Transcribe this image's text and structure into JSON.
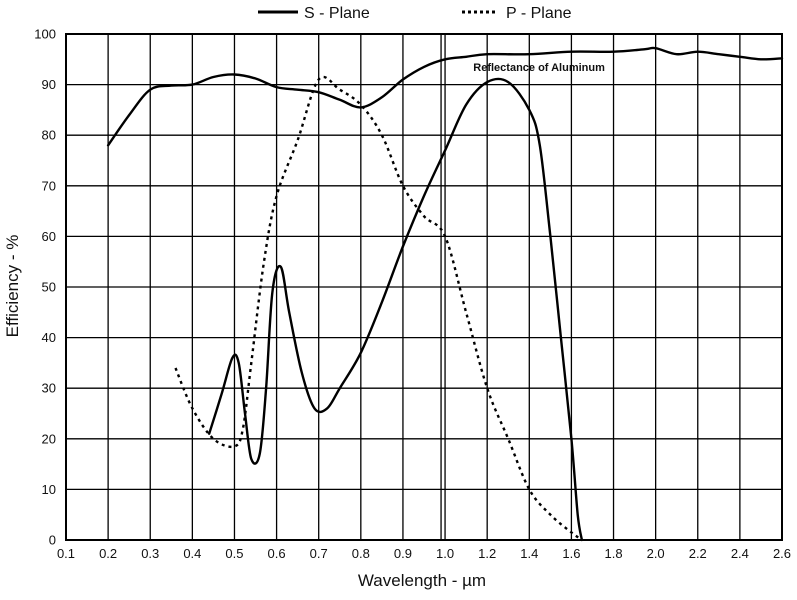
{
  "chart_data": {
    "type": "line",
    "xlabel": "Wavelength - µm",
    "ylabel": "Efficiency - %",
    "xlim": [
      0.1,
      2.6
    ],
    "ylim": [
      0,
      100
    ],
    "x_ticks": [
      "0.1",
      "0.2",
      "0.3",
      "0.4",
      "0.5",
      "0.6",
      "0.7",
      "0.8",
      "0.9",
      "1.0",
      "1.2",
      "1.4",
      "1.6",
      "1.8",
      "2.0",
      "2.2",
      "2.4",
      "2.6"
    ],
    "y_ticks": [
      "0",
      "10",
      "20",
      "30",
      "40",
      "50",
      "60",
      "70",
      "80",
      "90",
      "100"
    ],
    "grid": true,
    "x_scale_note": "segmented axis",
    "legend_position": "top",
    "legend": [
      {
        "name": "S - Plane",
        "style": "solid"
      },
      {
        "name": "P - Plane",
        "style": "dashed"
      }
    ],
    "annotation": {
      "text": "Reflectance of Aluminum",
      "x": 1.02,
      "y": 93.5
    },
    "series": [
      {
        "name": "Reflectance of Aluminum",
        "style": "solid",
        "points": [
          [
            0.2,
            78
          ],
          [
            0.25,
            84
          ],
          [
            0.3,
            89
          ],
          [
            0.35,
            89.8
          ],
          [
            0.4,
            90
          ],
          [
            0.45,
            91.5
          ],
          [
            0.5,
            92
          ],
          [
            0.55,
            91.2
          ],
          [
            0.6,
            89.5
          ],
          [
            0.65,
            89
          ],
          [
            0.7,
            88.5
          ],
          [
            0.75,
            87
          ],
          [
            0.8,
            85.5
          ],
          [
            0.85,
            87.5
          ],
          [
            0.9,
            91
          ],
          [
            0.95,
            93.5
          ],
          [
            1.0,
            95
          ],
          [
            1.1,
            95.5
          ],
          [
            1.2,
            96
          ],
          [
            1.4,
            96
          ],
          [
            1.6,
            96.5
          ],
          [
            1.8,
            96.5
          ],
          [
            1.95,
            97
          ],
          [
            2.0,
            97.2
          ],
          [
            2.1,
            96
          ],
          [
            2.2,
            96.5
          ],
          [
            2.3,
            96
          ],
          [
            2.4,
            95.5
          ],
          [
            2.5,
            95
          ],
          [
            2.6,
            95.2
          ]
        ]
      },
      {
        "name": "S - Plane",
        "style": "solid",
        "points": [
          [
            0.44,
            21
          ],
          [
            0.47,
            29
          ],
          [
            0.495,
            36
          ],
          [
            0.51,
            35
          ],
          [
            0.525,
            25
          ],
          [
            0.54,
            16
          ],
          [
            0.56,
            17
          ],
          [
            0.575,
            30
          ],
          [
            0.59,
            49
          ],
          [
            0.61,
            54
          ],
          [
            0.63,
            45
          ],
          [
            0.66,
            33
          ],
          [
            0.69,
            26
          ],
          [
            0.72,
            26
          ],
          [
            0.75,
            30
          ],
          [
            0.8,
            37
          ],
          [
            0.85,
            47
          ],
          [
            0.9,
            58
          ],
          [
            0.95,
            68
          ],
          [
            1.0,
            77
          ],
          [
            1.1,
            86
          ],
          [
            1.2,
            90.5
          ],
          [
            1.3,
            90.5
          ],
          [
            1.4,
            85
          ],
          [
            1.45,
            78
          ],
          [
            1.5,
            60
          ],
          [
            1.55,
            40
          ],
          [
            1.6,
            20
          ],
          [
            1.63,
            5
          ],
          [
            1.65,
            0
          ]
        ]
      },
      {
        "name": "P - Plane",
        "style": "dashed",
        "points": [
          [
            0.36,
            34
          ],
          [
            0.4,
            26
          ],
          [
            0.45,
            20
          ],
          [
            0.5,
            18.5
          ],
          [
            0.52,
            22
          ],
          [
            0.54,
            35
          ],
          [
            0.57,
            55
          ],
          [
            0.6,
            68
          ],
          [
            0.65,
            79
          ],
          [
            0.7,
            91
          ],
          [
            0.75,
            89
          ],
          [
            0.8,
            86
          ],
          [
            0.85,
            80
          ],
          [
            0.9,
            70
          ],
          [
            0.95,
            64
          ],
          [
            1.0,
            60
          ],
          [
            1.1,
            45
          ],
          [
            1.2,
            30
          ],
          [
            1.3,
            20
          ],
          [
            1.4,
            10
          ],
          [
            1.5,
            5
          ],
          [
            1.6,
            1.5
          ],
          [
            1.65,
            0
          ]
        ]
      }
    ]
  }
}
